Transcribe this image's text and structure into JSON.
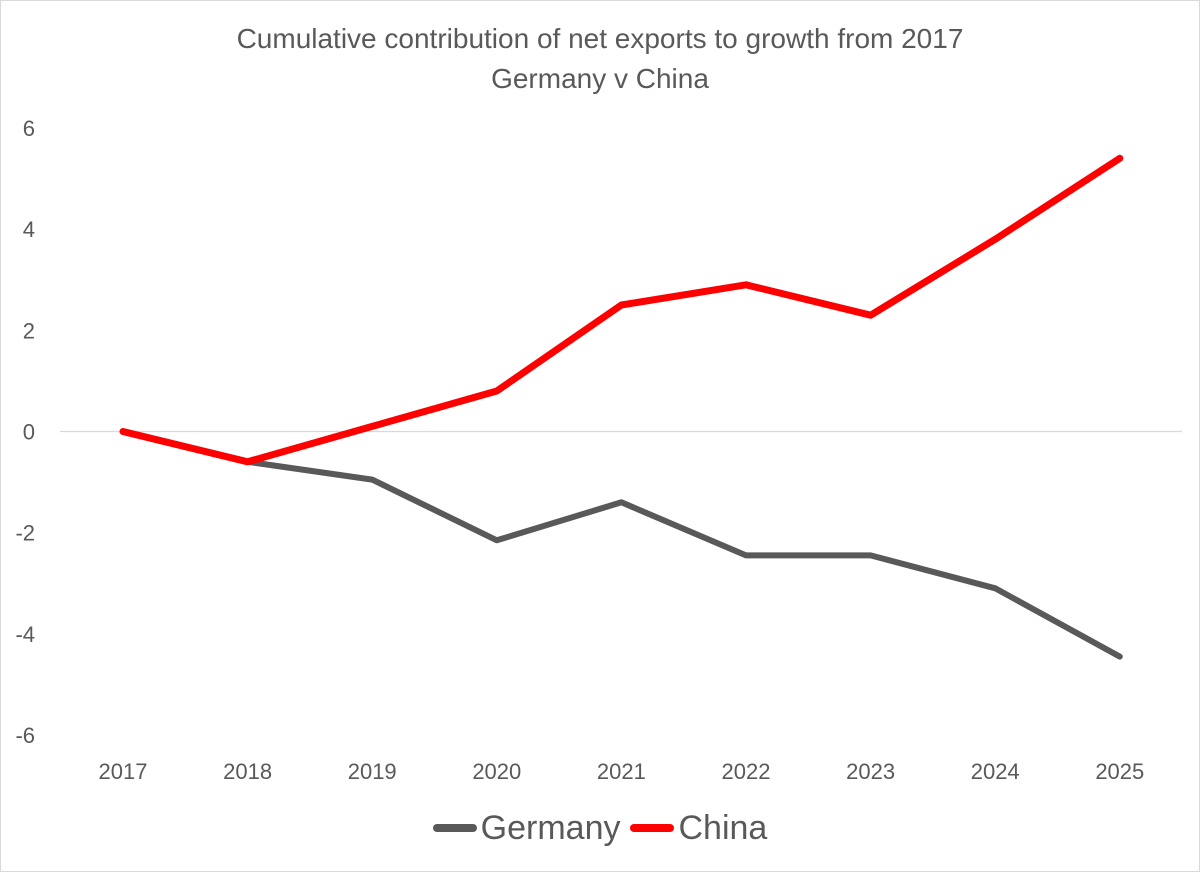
{
  "chart_data": {
    "type": "line",
    "title": "Cumulative contribution of net exports to growth from 2017",
    "subtitle": "Germany v China",
    "xlabel": "",
    "ylabel": "",
    "categories": [
      "2017",
      "2018",
      "2019",
      "2020",
      "2021",
      "2022",
      "2023",
      "2024",
      "2025"
    ],
    "ylim": [
      -6,
      6
    ],
    "yticks": [
      6,
      4,
      2,
      0,
      -2,
      -4,
      -6
    ],
    "grid": false,
    "zero_line": true,
    "legend_position": "bottom",
    "series": [
      {
        "name": "Germany",
        "color": "#595959",
        "values": [
          0,
          -0.6,
          -0.95,
          -2.15,
          -1.4,
          -2.45,
          -2.45,
          -3.1,
          -4.45
        ]
      },
      {
        "name": "China",
        "color": "#ff0000",
        "values": [
          0,
          -0.6,
          0.1,
          0.8,
          2.5,
          2.9,
          2.3,
          3.8,
          5.4
        ]
      }
    ]
  }
}
